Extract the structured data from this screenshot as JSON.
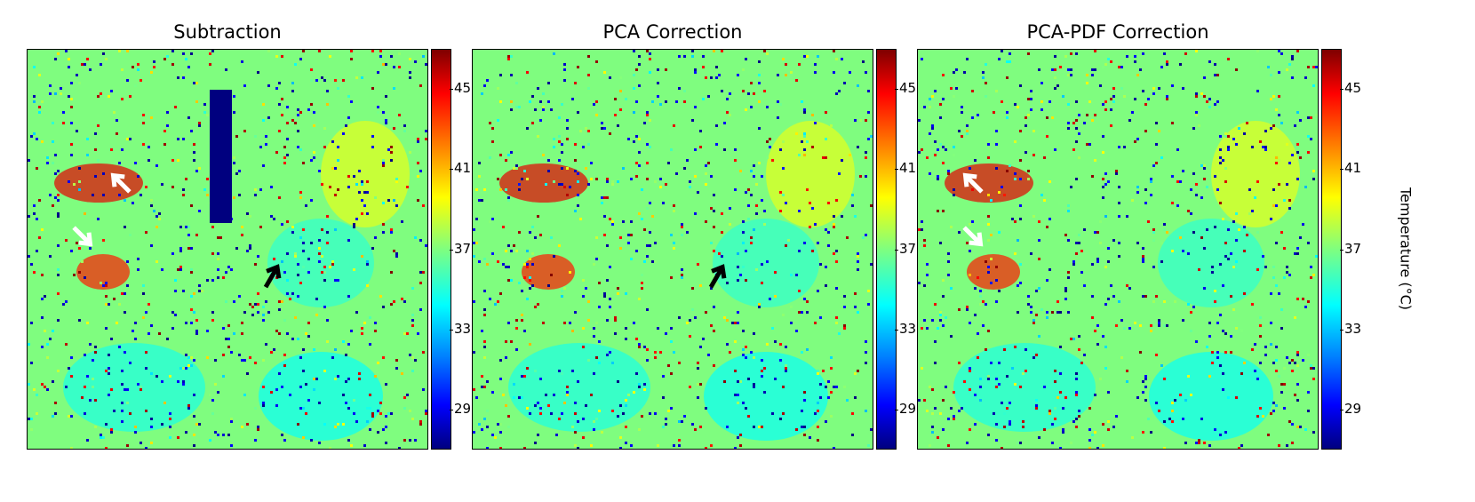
{
  "chart_data": {
    "type": "heatmap",
    "panels": [
      {
        "title": "Subtraction",
        "arrows": [
          {
            "color": "white",
            "direction": "up-left"
          },
          {
            "color": "white",
            "direction": "down-right"
          },
          {
            "color": "black",
            "direction": "up-right"
          }
        ]
      },
      {
        "title": "PCA Correction",
        "arrows": [
          {
            "color": "black",
            "direction": "up-right"
          }
        ]
      },
      {
        "title": "PCA-PDF Correction",
        "arrows": [
          {
            "color": "white",
            "direction": "up-left"
          },
          {
            "color": "white",
            "direction": "down-right"
          }
        ]
      }
    ],
    "colorbar": {
      "label": "Temperature (°C)",
      "colormap": "jet",
      "range": [
        27,
        47
      ],
      "ticks": [
        "29",
        "33",
        "37",
        "41",
        "45"
      ]
    },
    "background_value": 37,
    "colors": {
      "background": "#7ffd7f",
      "low": "#00007f",
      "high": "#7f0000"
    }
  }
}
